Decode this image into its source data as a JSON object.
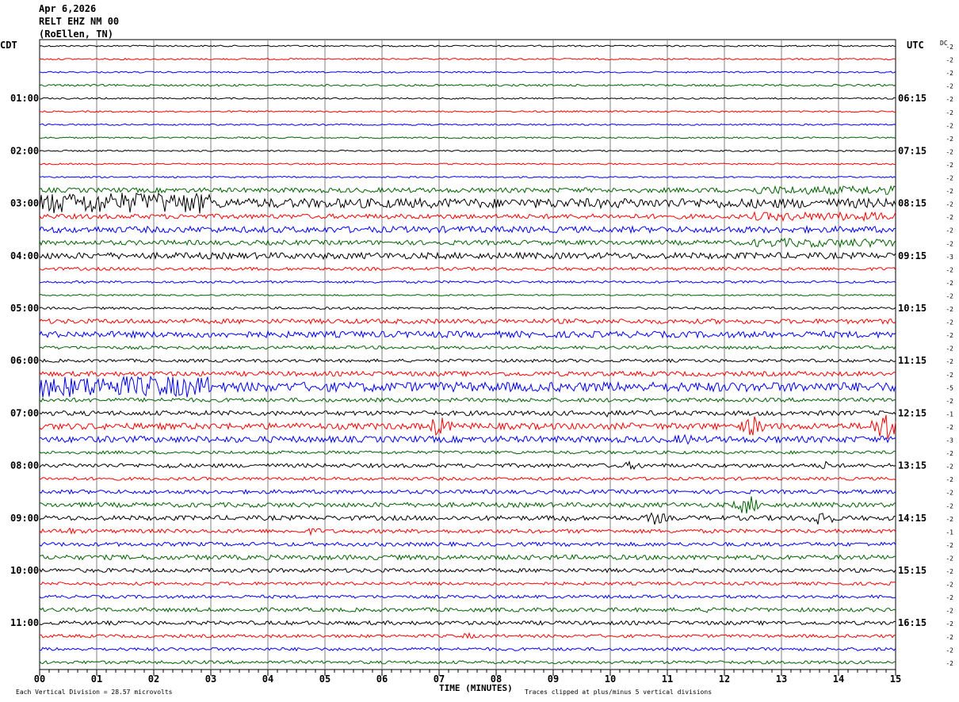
{
  "header": {
    "date": "Apr 6,2026",
    "station": "RELT EHZ NM 00",
    "location": "(RoEllen, TN)"
  },
  "chart_data": {
    "type": "line",
    "description_kind": "helicorder",
    "left_zone_label": "CDT",
    "right_zone_label": "UTC",
    "dc_label": "DC",
    "x_axis_title": "TIME (MINUTES)",
    "x_ticks": [
      "00",
      "01",
      "02",
      "03",
      "04",
      "05",
      "06",
      "07",
      "08",
      "09",
      "10",
      "11",
      "12",
      "13",
      "14",
      "15"
    ],
    "xlim": [
      0,
      15
    ],
    "row_count": 48,
    "row_colors": [
      "#000000",
      "#ff0000",
      "#0000ff",
      "#006400"
    ],
    "left_hour_labels": [
      {
        "row": 4,
        "text": "01:00"
      },
      {
        "row": 8,
        "text": "02:00"
      },
      {
        "row": 12,
        "text": "03:00"
      },
      {
        "row": 16,
        "text": "04:00"
      },
      {
        "row": 20,
        "text": "05:00"
      },
      {
        "row": 24,
        "text": "06:00"
      },
      {
        "row": 28,
        "text": "07:00"
      },
      {
        "row": 32,
        "text": "08:00"
      },
      {
        "row": 36,
        "text": "09:00"
      },
      {
        "row": 40,
        "text": "10:00"
      },
      {
        "row": 44,
        "text": "11:00"
      }
    ],
    "right_hour_labels": [
      {
        "row": 4,
        "text": "06:15"
      },
      {
        "row": 8,
        "text": "07:15"
      },
      {
        "row": 12,
        "text": "08:15"
      },
      {
        "row": 16,
        "text": "09:15"
      },
      {
        "row": 20,
        "text": "10:15"
      },
      {
        "row": 24,
        "text": "11:15"
      },
      {
        "row": 28,
        "text": "12:15"
      },
      {
        "row": 32,
        "text": "13:15"
      },
      {
        "row": 36,
        "text": "14:15"
      },
      {
        "row": 40,
        "text": "15:15"
      },
      {
        "row": 44,
        "text": "16:15"
      }
    ],
    "dc_offsets": [
      "-2",
      "-2",
      "-2",
      "-2",
      "-2",
      "-2",
      "-2",
      "-2",
      "-2",
      "-2",
      "-2",
      "-2",
      "-2",
      "-2",
      "-2",
      "-2",
      "-3",
      "-2",
      "-2",
      "-2",
      "-2",
      "-2",
      "-2",
      "-2",
      "-2",
      "-2",
      "-5",
      "-2",
      "-1",
      "-2",
      "-3",
      "-2",
      "-2",
      "-2",
      "-2",
      "-2",
      "-2",
      "-1",
      "-2",
      "-2",
      "-2",
      "-2",
      "-2",
      "-2",
      "-2",
      "-2",
      "-2",
      "-2"
    ],
    "noise_levels": [
      1,
      1,
      1,
      1.3,
      1,
      1,
      1,
      1,
      1,
      1,
      1,
      3,
      6,
      3,
      4,
      3,
      4,
      2,
      1.5,
      1,
      1.5,
      3,
      4,
      2,
      2,
      3,
      6,
      2.5,
      3,
      4,
      4,
      2,
      2.5,
      2,
      2.5,
      3,
      3,
      2.5,
      2.5,
      3,
      2.5,
      2,
      2,
      2.5,
      2.5,
      2,
      2,
      2
    ],
    "events": [
      {
        "row": 28,
        "minute": 10.0,
        "amp": 6
      },
      {
        "row": 29,
        "minute": 7.0,
        "amp": 14
      },
      {
        "row": 29,
        "minute": 12.5,
        "amp": 14
      },
      {
        "row": 29,
        "minute": 14.8,
        "amp": 22
      },
      {
        "row": 30,
        "minute": 11.3,
        "amp": 8
      },
      {
        "row": 32,
        "minute": 2.3,
        "amp": 5
      },
      {
        "row": 32,
        "minute": 10.4,
        "amp": 6
      },
      {
        "row": 32,
        "minute": 13.8,
        "amp": 6
      },
      {
        "row": 35,
        "minute": 12.4,
        "amp": 14
      },
      {
        "row": 36,
        "minute": 10.8,
        "amp": 9
      },
      {
        "row": 36,
        "minute": 13.7,
        "amp": 12
      },
      {
        "row": 36,
        "minute": 9.2,
        "amp": 6
      },
      {
        "row": 37,
        "minute": 0.5,
        "amp": 5
      },
      {
        "row": 37,
        "minute": 4.8,
        "amp": 5
      },
      {
        "row": 43,
        "minute": 11.8,
        "amp": 5
      },
      {
        "row": 45,
        "minute": 7.5,
        "amp": 4
      }
    ]
  },
  "footer": {
    "left_note": "Each Vertical Division =   28.57 microvolts",
    "right_note": "Traces clipped at plus/minus 5 vertical divisions"
  }
}
